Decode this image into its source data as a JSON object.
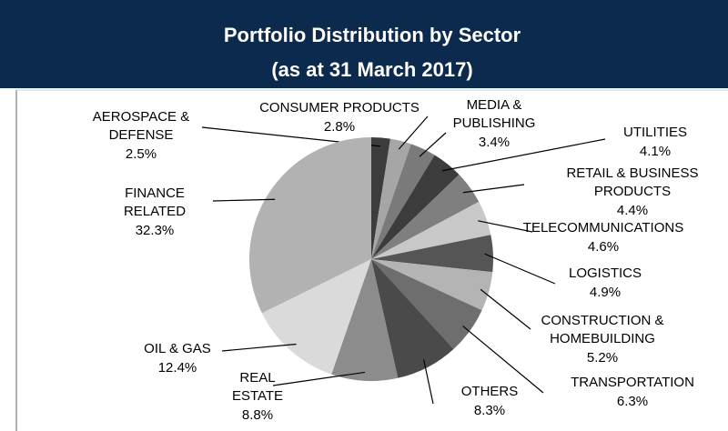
{
  "chart_data": {
    "type": "pie",
    "title": "Portfolio Distribution by Sector",
    "subtitle": "(as at 31 March 2017)",
    "categories": [
      "AEROSPACE & DEFENSE",
      "CONSUMER PRODUCTS",
      "MEDIA & PUBLISHING",
      "UTILITIES",
      "RETAIL & BUSINESS PRODUCTS",
      "TELECOMMUNICATIONS",
      "LOGISTICS",
      "CONSTRUCTION & HOMEBUILDING",
      "TRANSPORTATION",
      "OTHERS",
      "REAL ESTATE",
      "OIL & GAS",
      "FINANCE RELATED"
    ],
    "values": [
      2.5,
      2.8,
      3.4,
      4.1,
      4.4,
      4.6,
      4.9,
      5.2,
      6.3,
      8.3,
      8.8,
      12.4,
      32.3
    ],
    "value_labels": [
      "2.5%",
      "2.8%",
      "3.4%",
      "4.1%",
      "4.4%",
      "4.6%",
      "4.9%",
      "5.2%",
      "6.3%",
      "8.3%",
      "8.8%",
      "12.4%",
      "32.3%"
    ],
    "colors": [
      "#3c3c3c",
      "#a6a6a6",
      "#7a7a7a",
      "#3c3c3c",
      "#7f7f7f",
      "#c8c8c8",
      "#555555",
      "#b4b4b4",
      "#6e6e6e",
      "#4a4a4a",
      "#8c8c8c",
      "#dadada",
      "#b2b2b2"
    ]
  }
}
